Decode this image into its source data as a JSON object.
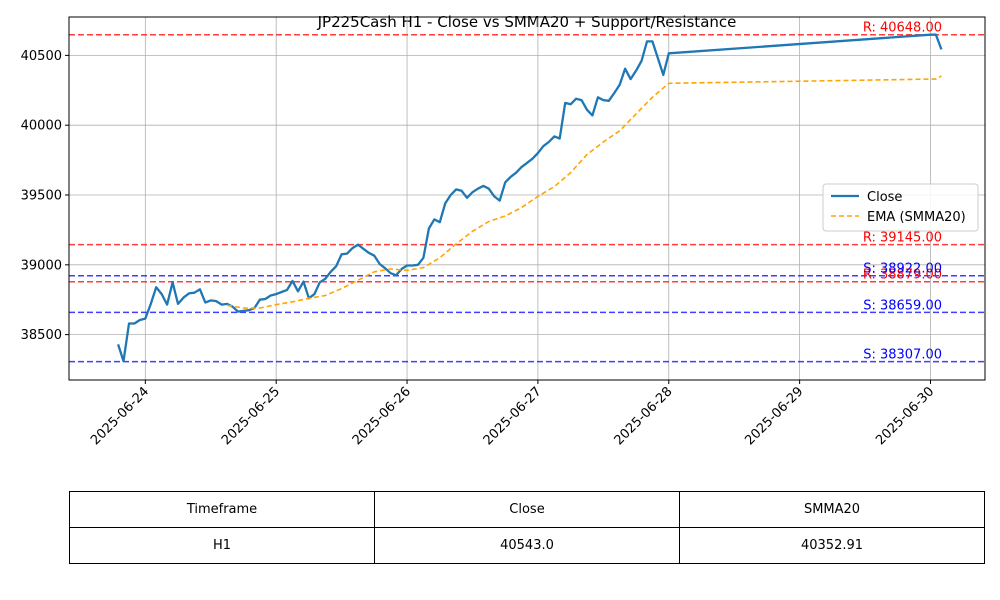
{
  "chart_data": {
    "type": "line",
    "title": "JP225Cash H1 - Close vs SMMA20 + Support/Resistance",
    "xlabel": "",
    "ylabel": "",
    "xlim": [
      "2025-06-23T10:00",
      "2025-06-30T10:00"
    ],
    "ylim": [
      38175,
      40775
    ],
    "x_ticks": [
      "2025-06-24",
      "2025-06-25",
      "2025-06-26",
      "2025-06-27",
      "2025-06-28",
      "2025-06-29",
      "2025-06-30"
    ],
    "y_ticks": [
      38500,
      39000,
      39500,
      40000,
      40500
    ],
    "grid": true,
    "legend": {
      "position": "right",
      "entries": [
        "Close",
        "EMA (SMMA20)"
      ]
    },
    "colors": {
      "close": "#1f77b4",
      "smma": "#ffa500",
      "resistance": "#ff0000",
      "support": "#0000ff",
      "grid": "#b0b0b0"
    },
    "series": [
      {
        "name": "Close",
        "style": "solid",
        "points": [
          [
            "2025-06-23T19:00",
            38430
          ],
          [
            "2025-06-23T20:00",
            38310
          ],
          [
            "2025-06-23T21:00",
            38580
          ],
          [
            "2025-06-23T22:00",
            38580
          ],
          [
            "2025-06-23T23:00",
            38605
          ],
          [
            "2025-06-24T00:00",
            38615
          ],
          [
            "2025-06-24T01:00",
            38720
          ],
          [
            "2025-06-24T02:00",
            38840
          ],
          [
            "2025-06-24T03:00",
            38790
          ],
          [
            "2025-06-24T04:00",
            38715
          ],
          [
            "2025-06-24T05:00",
            38875
          ],
          [
            "2025-06-24T06:00",
            38720
          ],
          [
            "2025-06-24T07:00",
            38765
          ],
          [
            "2025-06-24T08:00",
            38795
          ],
          [
            "2025-06-24T09:00",
            38800
          ],
          [
            "2025-06-24T10:00",
            38825
          ],
          [
            "2025-06-24T11:00",
            38730
          ],
          [
            "2025-06-24T12:00",
            38745
          ],
          [
            "2025-06-24T13:00",
            38740
          ],
          [
            "2025-06-24T14:00",
            38715
          ],
          [
            "2025-06-24T15:00",
            38720
          ],
          [
            "2025-06-24T16:00",
            38700
          ],
          [
            "2025-06-24T17:00",
            38665
          ],
          [
            "2025-06-24T18:00",
            38670
          ],
          [
            "2025-06-24T19:00",
            38675
          ],
          [
            "2025-06-24T20:00",
            38690
          ],
          [
            "2025-06-24T21:00",
            38750
          ],
          [
            "2025-06-24T22:00",
            38755
          ],
          [
            "2025-06-24T23:00",
            38780
          ],
          [
            "2025-06-25T00:00",
            38790
          ],
          [
            "2025-06-25T01:00",
            38805
          ],
          [
            "2025-06-25T02:00",
            38820
          ],
          [
            "2025-06-25T03:00",
            38885
          ],
          [
            "2025-06-25T04:00",
            38810
          ],
          [
            "2025-06-25T05:00",
            38880
          ],
          [
            "2025-06-25T06:00",
            38760
          ],
          [
            "2025-06-25T07:00",
            38790
          ],
          [
            "2025-06-25T08:00",
            38875
          ],
          [
            "2025-06-25T09:00",
            38900
          ],
          [
            "2025-06-25T10:00",
            38950
          ],
          [
            "2025-06-25T11:00",
            38990
          ],
          [
            "2025-06-25T12:00",
            39075
          ],
          [
            "2025-06-25T13:00",
            39080
          ],
          [
            "2025-06-25T14:00",
            39120
          ],
          [
            "2025-06-25T15:00",
            39145
          ],
          [
            "2025-06-25T16:00",
            39115
          ],
          [
            "2025-06-25T17:00",
            39085
          ],
          [
            "2025-06-25T18:00",
            39065
          ],
          [
            "2025-06-25T19:00",
            39005
          ],
          [
            "2025-06-25T20:00",
            38975
          ],
          [
            "2025-06-25T21:00",
            38940
          ],
          [
            "2025-06-25T22:00",
            38925
          ],
          [
            "2025-06-25T23:00",
            38970
          ],
          [
            "2025-06-26T00:00",
            38995
          ],
          [
            "2025-06-26T01:00",
            38995
          ],
          [
            "2025-06-26T02:00",
            39000
          ],
          [
            "2025-06-26T03:00",
            39050
          ],
          [
            "2025-06-26T04:00",
            39260
          ],
          [
            "2025-06-26T05:00",
            39325
          ],
          [
            "2025-06-26T06:00",
            39305
          ],
          [
            "2025-06-26T07:00",
            39440
          ],
          [
            "2025-06-26T08:00",
            39500
          ],
          [
            "2025-06-26T09:00",
            39540
          ],
          [
            "2025-06-26T10:00",
            39530
          ],
          [
            "2025-06-26T11:00",
            39480
          ],
          [
            "2025-06-26T12:00",
            39520
          ],
          [
            "2025-06-26T13:00",
            39545
          ],
          [
            "2025-06-26T14:00",
            39565
          ],
          [
            "2025-06-26T15:00",
            39545
          ],
          [
            "2025-06-26T16:00",
            39490
          ],
          [
            "2025-06-26T17:00",
            39460
          ],
          [
            "2025-06-26T18:00",
            39590
          ],
          [
            "2025-06-26T19:00",
            39630
          ],
          [
            "2025-06-26T20:00",
            39660
          ],
          [
            "2025-06-26T21:00",
            39700
          ],
          [
            "2025-06-26T22:00",
            39730
          ],
          [
            "2025-06-26T23:00",
            39760
          ],
          [
            "2025-06-27T00:00",
            39800
          ],
          [
            "2025-06-27T01:00",
            39850
          ],
          [
            "2025-06-27T02:00",
            39880
          ],
          [
            "2025-06-27T03:00",
            39920
          ],
          [
            "2025-06-27T04:00",
            39905
          ],
          [
            "2025-06-27T05:00",
            40160
          ],
          [
            "2025-06-27T06:00",
            40150
          ],
          [
            "2025-06-27T07:00",
            40190
          ],
          [
            "2025-06-27T08:00",
            40180
          ],
          [
            "2025-06-27T09:00",
            40110
          ],
          [
            "2025-06-27T10:00",
            40070
          ],
          [
            "2025-06-27T11:00",
            40200
          ],
          [
            "2025-06-27T12:00",
            40180
          ],
          [
            "2025-06-27T13:00",
            40175
          ],
          [
            "2025-06-27T14:00",
            40230
          ],
          [
            "2025-06-27T15:00",
            40290
          ],
          [
            "2025-06-27T16:00",
            40405
          ],
          [
            "2025-06-27T17:00",
            40330
          ],
          [
            "2025-06-27T18:00",
            40390
          ],
          [
            "2025-06-27T19:00",
            40460
          ],
          [
            "2025-06-27T20:00",
            40600
          ],
          [
            "2025-06-27T21:00",
            40600
          ],
          [
            "2025-06-27T22:00",
            40480
          ],
          [
            "2025-06-27T23:00",
            40360
          ],
          [
            "2025-06-28T00:00",
            40515
          ],
          [
            "2025-06-30T00:00",
            40648
          ],
          [
            "2025-06-30T01:00",
            40648
          ],
          [
            "2025-06-30T02:00",
            40543
          ]
        ]
      },
      {
        "name": "EMA (SMMA20)",
        "style": "dashed",
        "points": [
          [
            "2025-06-24T15:00",
            38710
          ],
          [
            "2025-06-24T18:00",
            38690
          ],
          [
            "2025-06-24T21:00",
            38690
          ],
          [
            "2025-06-25T00:00",
            38715
          ],
          [
            "2025-06-25T03:00",
            38735
          ],
          [
            "2025-06-25T06:00",
            38760
          ],
          [
            "2025-06-25T09:00",
            38780
          ],
          [
            "2025-06-25T12:00",
            38830
          ],
          [
            "2025-06-25T15:00",
            38890
          ],
          [
            "2025-06-25T18:00",
            38950
          ],
          [
            "2025-06-25T21:00",
            38970
          ],
          [
            "2025-06-26T00:00",
            38960
          ],
          [
            "2025-06-26T03:00",
            38980
          ],
          [
            "2025-06-26T06:00",
            39050
          ],
          [
            "2025-06-26T09:00",
            39150
          ],
          [
            "2025-06-26T12:00",
            39240
          ],
          [
            "2025-06-26T15:00",
            39310
          ],
          [
            "2025-06-26T18:00",
            39350
          ],
          [
            "2025-06-26T21:00",
            39410
          ],
          [
            "2025-06-27T00:00",
            39490
          ],
          [
            "2025-06-27T03:00",
            39560
          ],
          [
            "2025-06-27T06:00",
            39660
          ],
          [
            "2025-06-27T09:00",
            39790
          ],
          [
            "2025-06-27T12:00",
            39880
          ],
          [
            "2025-06-27T15:00",
            39960
          ],
          [
            "2025-06-27T18:00",
            40080
          ],
          [
            "2025-06-27T21:00",
            40200
          ],
          [
            "2025-06-28T00:00",
            40300
          ],
          [
            "2025-06-30T00:00",
            40330
          ],
          [
            "2025-06-30T01:00",
            40330
          ],
          [
            "2025-06-30T02:00",
            40353
          ]
        ]
      }
    ],
    "levels": [
      {
        "kind": "resistance",
        "label": "R: 40648.00",
        "value": 40648
      },
      {
        "kind": "resistance",
        "label": "R: 39145.00",
        "value": 39145
      },
      {
        "kind": "resistance",
        "label": "R: 38879.00",
        "value": 38879
      },
      {
        "kind": "support",
        "label": "S: 38922.00",
        "value": 38922
      },
      {
        "kind": "support",
        "label": "S: 38659.00",
        "value": 38659
      },
      {
        "kind": "support",
        "label": "S: 38307.00",
        "value": 38307
      }
    ]
  },
  "summary_table": {
    "headers": [
      "Timeframe",
      "Close",
      "SMMA20"
    ],
    "rows": [
      [
        "H1",
        "40543.0",
        "40352.91"
      ]
    ]
  }
}
